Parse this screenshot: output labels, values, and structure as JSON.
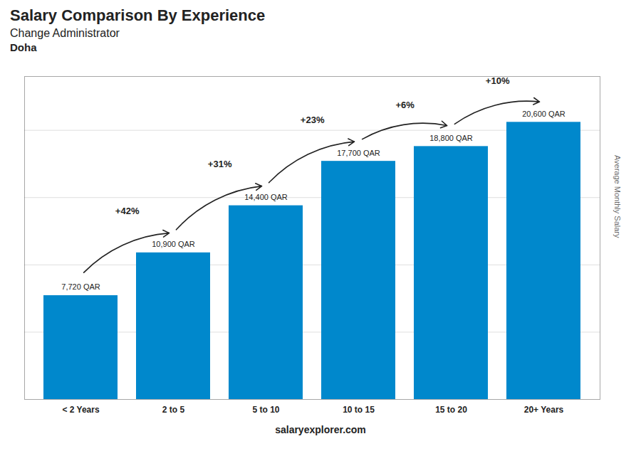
{
  "chart_data": {
    "type": "bar",
    "title": "Salary Comparison By Experience",
    "subtitle": "Change Administrator",
    "city": "Doha",
    "caption": "salaryexplorer.com",
    "categories": [
      "< 2 Years",
      "2 to 5",
      "5 to 10",
      "10 to 15",
      "15 to 20",
      "20+ Years"
    ],
    "values": [
      7720,
      10900,
      14400,
      17700,
      18800,
      20600
    ],
    "value_labels": [
      "7,720 QAR",
      "10,900 QAR",
      "14,400 QAR",
      "17,700 QAR",
      "18,800 QAR",
      "20,600 QAR"
    ],
    "data_labels": true,
    "annotations": [
      "+42%",
      "+31%",
      "+23%",
      "+6%",
      "+10%"
    ],
    "color": "#0088cc",
    "ylabel": "Average Monthly Salary",
    "ylim": [
      0,
      24000
    ],
    "yticks": [
      5000,
      10000,
      15000,
      20000
    ],
    "grid": true,
    "tick_labels": "x"
  }
}
